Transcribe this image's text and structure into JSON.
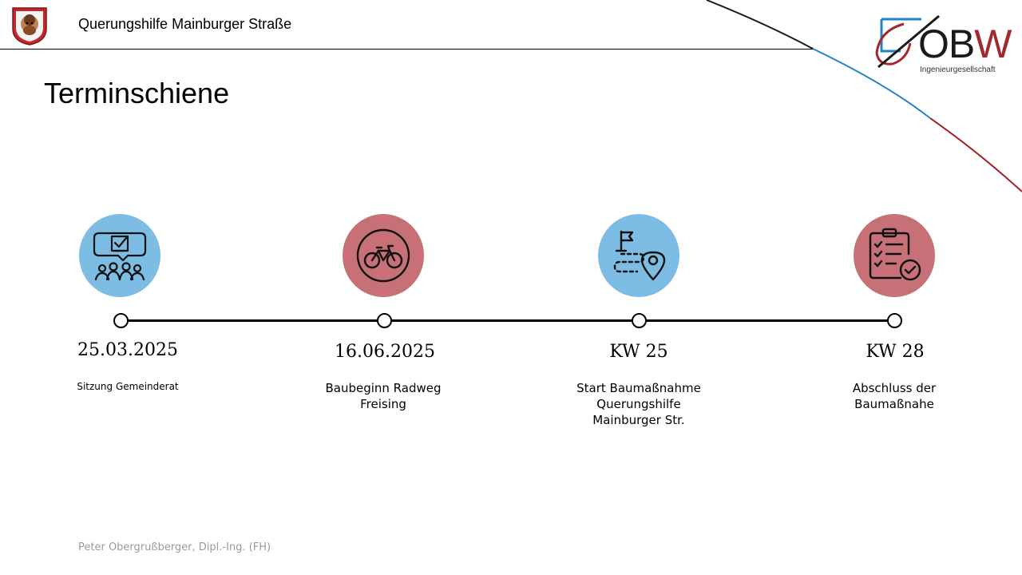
{
  "header": {
    "title": "Querungshilfe Mainburger Straße",
    "crest_icon": "municipal-crest-icon"
  },
  "logo": {
    "o": "O",
    "b": "B",
    "w": "W",
    "subtitle": "Ingenieurgesellschaft"
  },
  "slide": {
    "title": "Terminschiene"
  },
  "colors": {
    "blue": "#7dbde3",
    "red": "#c77077",
    "accent_blue": "#1f84c6",
    "accent_red": "#a3272f"
  },
  "timeline": [
    {
      "date": "25.03.2025",
      "label_lines": [
        "Sitzung Gemeinderat"
      ],
      "color": "blue",
      "icon": "council-meeting-icon"
    },
    {
      "date": "16.06.2025",
      "label_lines": [
        "Baubeginn Radweg",
        "Freising"
      ],
      "color": "red",
      "icon": "bicycle-icon"
    },
    {
      "date": "KW 25",
      "label_lines": [
        "Start Baumaßnahme",
        "Querungshilfe",
        "Mainburger Str."
      ],
      "color": "blue",
      "icon": "route-flag-pin-icon"
    },
    {
      "date": "KW 28",
      "label_lines": [
        "Abschluss der",
        "Baumaßnahe"
      ],
      "color": "red",
      "icon": "checklist-done-icon"
    }
  ],
  "footer": {
    "author": "Peter Obergrußberger, Dipl.-Ing. (FH)"
  }
}
